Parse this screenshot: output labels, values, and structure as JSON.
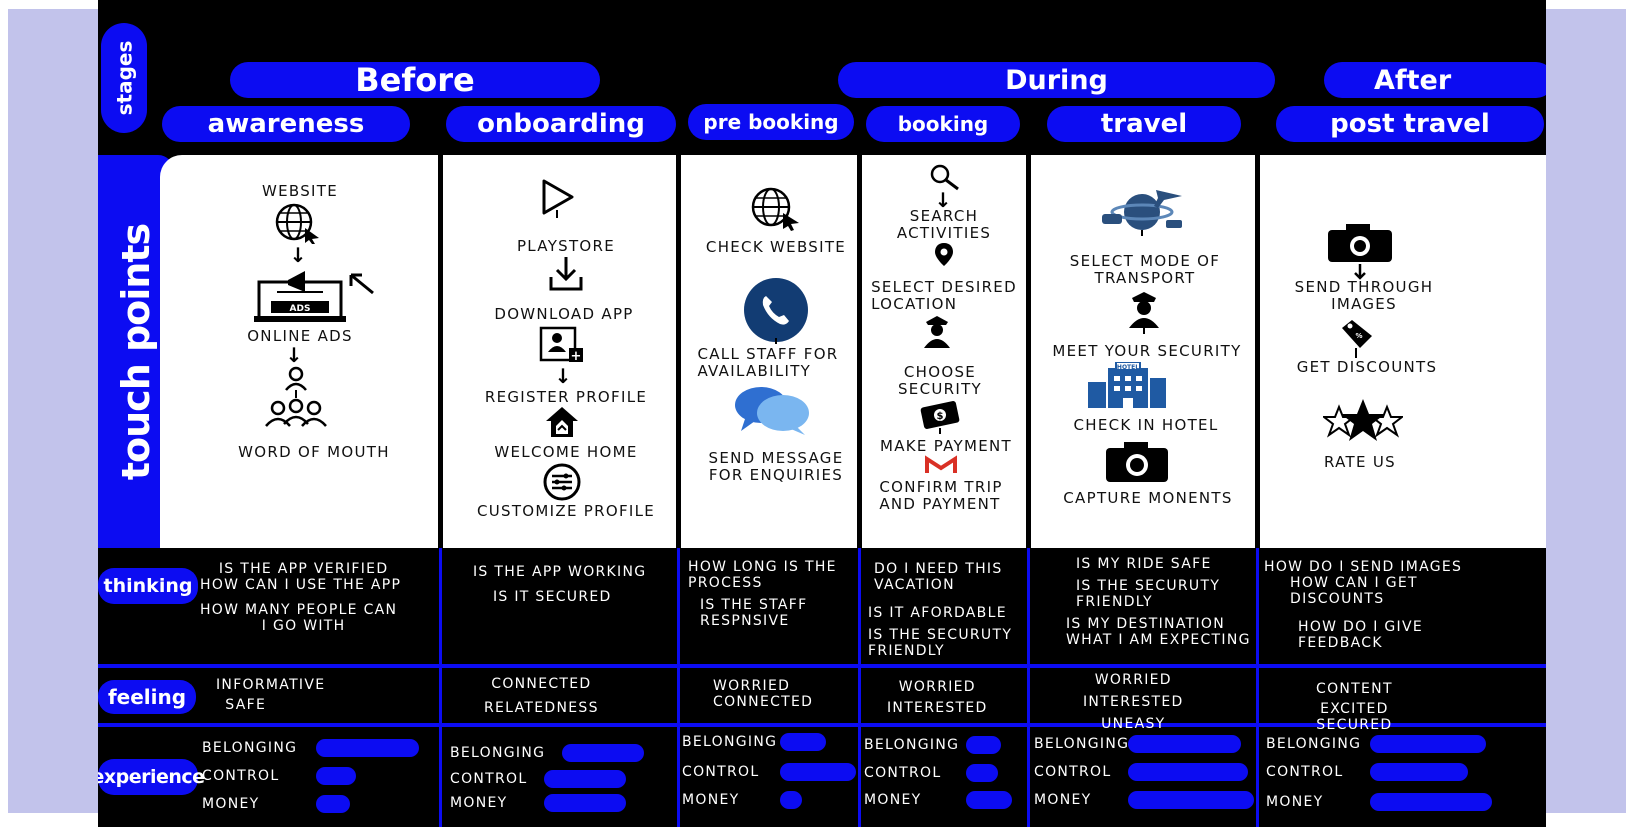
{
  "row_labels": {
    "stages": "stages",
    "touch_points": "touch points",
    "thinking": "thinking",
    "feeling": "feeling",
    "experience": "experience"
  },
  "phases": {
    "before": "Before",
    "during": "During",
    "after": "After"
  },
  "stages": [
    "awareness",
    "onboarding",
    "pre booking",
    "booking",
    "travel",
    "post travel"
  ],
  "touchpoints": {
    "awareness": [
      "WEBSITE",
      "ONLINE ADS",
      "WORD OF MOUTH"
    ],
    "onboarding": [
      "PLAYSTORE",
      "DOWNLOAD APP",
      "REGISTER PROFILE",
      "WELCOME HOME",
      "CUSTOMIZE PROFILE"
    ],
    "pre_booking": [
      "CHECK WEBSITE",
      "CALL STAFF FOR",
      "AVAILABILITY",
      "SEND MESSAGE",
      "FOR ENQUIRIES"
    ],
    "booking": [
      "SEARCH",
      "ACTIVITIES",
      "SELECT DESIRED",
      "LOCATION",
      "CHOOSE",
      "SECURITY",
      "MAKE PAYMENT",
      "CONFIRM TRIP",
      "AND PAYMENT"
    ],
    "travel": [
      "SELECT MODE OF",
      "TRANSPORT",
      "MEET YOUR SECURITY",
      "CHECK IN HOTEL",
      "CAPTURE MONENTS"
    ],
    "post_travel": [
      "SEND THROUGH",
      "IMAGES",
      "GET DISCOUNTS",
      "RATE US"
    ]
  },
  "thinking": {
    "awareness": [
      "IS THE APP VERIFIED",
      "HOW CAN I USE THE APP",
      "HOW MANY PEOPLE CAN",
      "I GO WITH"
    ],
    "onboarding": [
      "IS THE APP WORKING",
      "IS IT SECURED"
    ],
    "pre_booking": [
      "HOW LONG IS THE",
      "PROCESS",
      "IS THE STAFF",
      "RESPNSIVE"
    ],
    "booking": [
      "DO I NEED THIS",
      "VACATION",
      "IS IT AFORDABLE",
      "IS THE SECURUTY",
      "FRIENDLY"
    ],
    "travel": [
      "IS MY RIDE SAFE",
      "IS THE SECURUTY",
      "FRIENDLY",
      "IS MY DESTINATION",
      "WHAT I AM EXPECTING"
    ],
    "post_travel": [
      "HOW DO I SEND IMAGES",
      "HOW CAN I GET",
      "DISCOUNTS",
      "HOW DO I GIVE",
      "FEEDBACK"
    ]
  },
  "feeling": {
    "awareness": [
      "INFORMATIVE",
      "SAFE"
    ],
    "onboarding": [
      "CONNECTED",
      "RELATEDNESS"
    ],
    "pre_booking": [
      "WORRIED",
      "CONNECTED"
    ],
    "booking": [
      "WORRIED",
      "INTERESTED"
    ],
    "travel": [
      "WORRIED",
      "INTERESTED",
      "UNEASY"
    ],
    "post_travel": [
      "CONTENT",
      "EXCITED",
      "SECURED"
    ]
  },
  "experience": {
    "labels": [
      "BELONGING",
      "CONTROL",
      "MONEY"
    ],
    "levels": [
      [
        0.9,
        0.35,
        0.3
      ],
      [
        0.95,
        0.95,
        0.95
      ],
      [
        0.55,
        0.9,
        0.2
      ],
      [
        0.6,
        0.55,
        0.8
      ],
      [
        0.9,
        0.95,
        1.0
      ],
      [
        0.95,
        0.8,
        1.0
      ]
    ]
  },
  "colors": {
    "accent": "#0c0cf2",
    "background": "#000000",
    "side_panel": "#c2c3eb"
  },
  "icons": [
    "globe-cursor-icon",
    "online-ads-icon",
    "cursor-arrow-icon",
    "word-of-mouth-icon",
    "play-store-icon",
    "download-icon",
    "register-profile-icon",
    "home-icon",
    "settings-sliders-icon",
    "phone-icon",
    "chat-bubbles-icon",
    "search-icon",
    "location-pin-icon",
    "security-guard-icon",
    "payment-icon",
    "gmail-icon",
    "transport-icon",
    "hotel-icon",
    "camera-icon",
    "discount-tag-icon",
    "star-rating-icon"
  ]
}
